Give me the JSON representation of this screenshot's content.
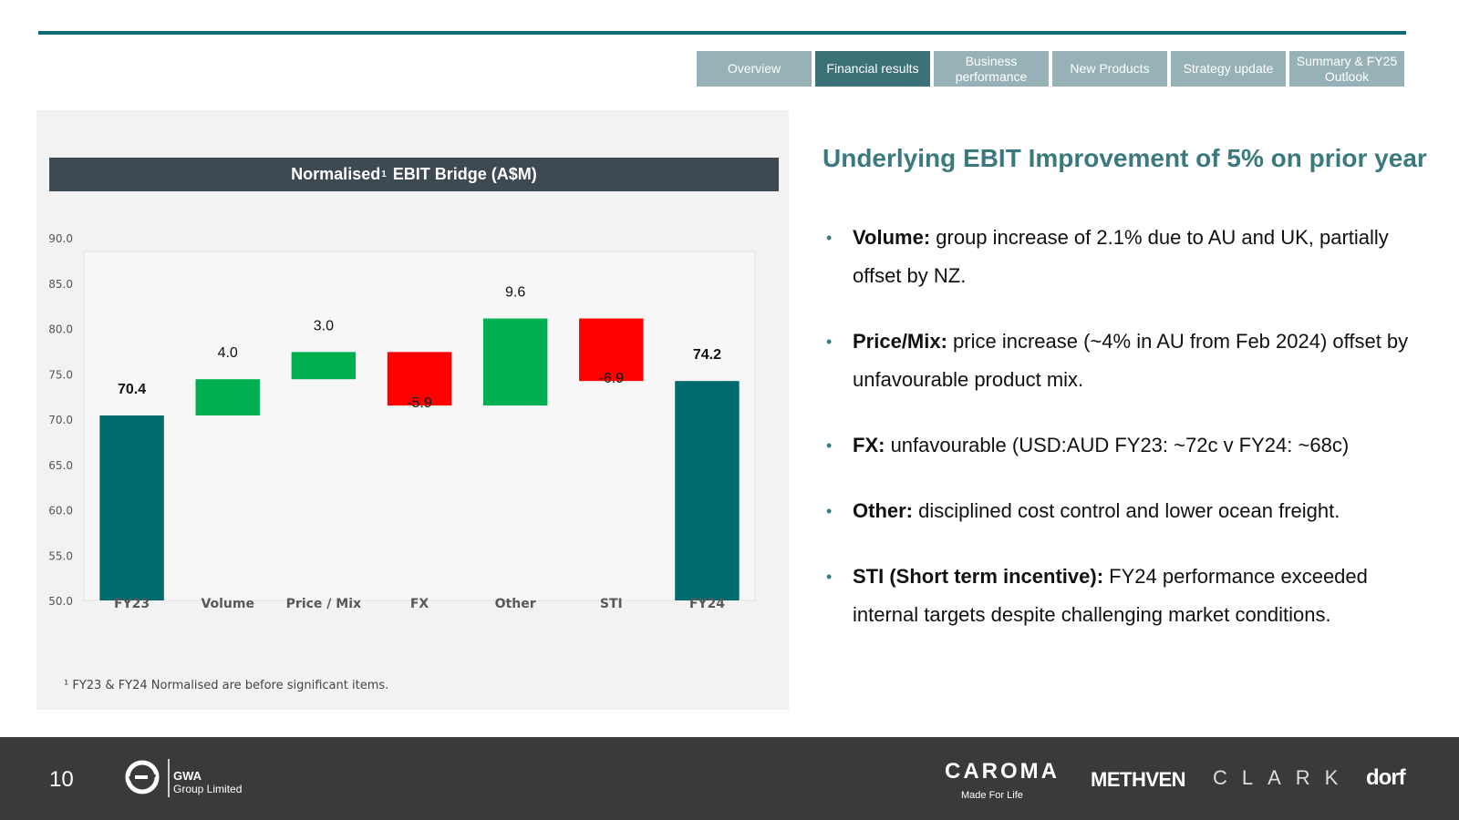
{
  "tabs": [
    {
      "label": "Overview",
      "active": false
    },
    {
      "label": "Financial results",
      "active": true
    },
    {
      "label": "Business performance",
      "active": false
    },
    {
      "label": "New Products",
      "active": false
    },
    {
      "label": "Strategy update",
      "active": false
    },
    {
      "label": "Summary & FY25 Outlook",
      "active": false
    }
  ],
  "chart_panel": {
    "title_prefix": "Normalised",
    "title_sup": "1",
    "title_suffix": "EBIT Bridge (A$M)",
    "footnote": "¹ FY23 & FY24 Normalised are before significant items."
  },
  "chart_data": {
    "type": "waterfall",
    "title": "Normalised¹ EBIT Bridge (A$M)",
    "ylim": [
      50.0,
      90.0
    ],
    "yticks": [
      "50.0",
      "55.0",
      "60.0",
      "65.0",
      "70.0",
      "75.0",
      "80.0",
      "85.0",
      "90.0"
    ],
    "categories": [
      "FY23",
      "Volume",
      "Price / Mix",
      "FX",
      "Other",
      "STI",
      "FY24"
    ],
    "values": [
      70.4,
      4.0,
      3.0,
      -5.9,
      9.6,
      -6.9,
      74.2
    ],
    "labels": [
      "70.4",
      "4.0",
      "3.0",
      "-5.9",
      "9.6",
      "-6.9",
      "74.2"
    ],
    "kinds": [
      "total",
      "delta",
      "delta",
      "delta",
      "delta",
      "delta",
      "total"
    ],
    "colors": {
      "total": "#006a6e",
      "increase": "#00b050",
      "decrease": "#ff0000"
    }
  },
  "headline": "Underlying EBIT Improvement of 5% on prior year",
  "bullets": [
    {
      "bold": "Volume:",
      "text": " group increase of 2.1% due to AU and UK, partially offset by NZ."
    },
    {
      "bold": "Price/Mix:",
      "text": " price increase (~4% in AU from Feb 2024) offset by unfavourable product mix."
    },
    {
      "bold": "FX:",
      "text": " unfavourable (USD:AUD FY23: ~72c v FY24: ~68c)"
    },
    {
      "bold": "Other:",
      "text": " disciplined cost control and lower ocean freight."
    },
    {
      "bold": "STI (Short term incentive):",
      "text": " FY24 performance exceeded internal targets despite challenging market conditions."
    }
  ],
  "footer": {
    "page_number": "10",
    "gwa_name": "GWA",
    "gwa_sub": "Group Limited",
    "brands": {
      "caroma": "CAROMA",
      "caroma_tagline": "Made For Life",
      "methven": "METHVEN",
      "clark": "CLARK",
      "dorf": "dorf"
    }
  }
}
